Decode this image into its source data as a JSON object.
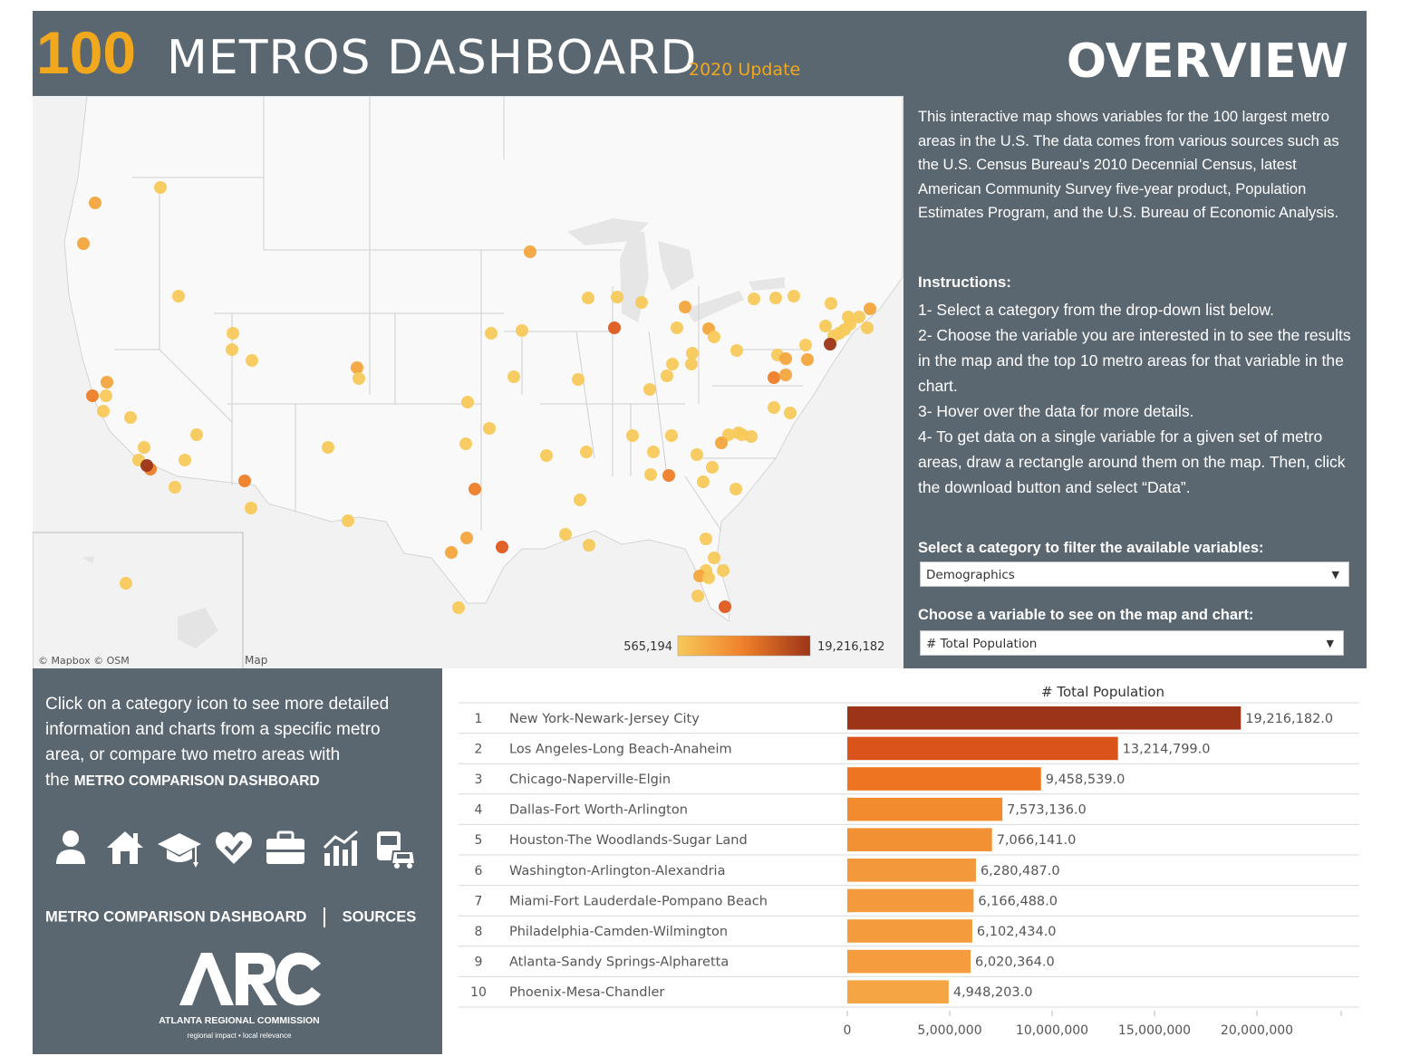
{
  "header": {
    "title_number": "100",
    "title_main": "METROS DASHBOARD",
    "title_update": "2020 Update",
    "overview": "OVERVIEW"
  },
  "intro_text": "This interactive map shows variables for the 100 largest metro areas in the U.S. The data comes from various sources such as the U.S. Census Bureau's 2010 Decennial Census, latest American Community Survey five-year product, Population Estimates Program, and the U.S. Bureau of Economic Analysis.",
  "instructions": {
    "title": "Instructions:",
    "steps": [
      "1- Select a category from the drop-down list below.",
      "2- Choose the variable you are interested in to see the results in the map and the top 10 metro areas for that variable in the chart.",
      "3- Hover over the data for more details.",
      "4- To get data on a single variable for a given set of metro areas, draw a rectangle around them on the map. Then, click the download button and select “Data”."
    ]
  },
  "filters": {
    "category_label": "Select a category to filter the available variables:",
    "category_value": "Demographics",
    "variable_label": "Choose a variable to see on the map and chart:",
    "variable_value": "# Total Population"
  },
  "map": {
    "legend_min": "565,194",
    "legend_max": "19,216,182",
    "attribution": "© Mapbox  © OSM",
    "attribution_cut": "Map",
    "colors": {
      "low": "#f7c95a",
      "mid": "#f08a2c",
      "high": "#9c3518"
    }
  },
  "left_panel": {
    "text_lines": [
      "Click on a category icon to see more detailed",
      "information and charts from a specific metro",
      "area, or compare two metro areas with"
    ],
    "text_the": "the ",
    "text_bold": "METRO COMPARISON DASHBOARD",
    "icons": [
      "person-icon",
      "home-icon",
      "graduation-cap-icon",
      "heart-icon",
      "briefcase-icon",
      "bar-chart-icon",
      "transit-icon"
    ],
    "link_metro": "METRO COMPARISON DASHBOARD",
    "link_sources": "SOURCES",
    "logo_name": "ATLANTA REGIONAL COMMISSION",
    "logo_tagline": "regional impact • local relevance"
  },
  "chart_data": {
    "type": "bar",
    "orientation": "horizontal",
    "title": "# Total Population",
    "ranks": [
      "1",
      "2",
      "3",
      "4",
      "5",
      "6",
      "7",
      "8",
      "9",
      "10"
    ],
    "categories": [
      "New York-Newark-Jersey City",
      "Los Angeles-Long Beach-Anaheim",
      "Chicago-Naperville-Elgin",
      "Dallas-Fort Worth-Arlington",
      "Houston-The Woodlands-Sugar Land",
      "Washington-Arlington-Alexandria",
      "Miami-Fort Lauderdale-Pompano Beach",
      "Philadelphia-Camden-Wilmington",
      "Atlanta-Sandy Springs-Alpharetta",
      "Phoenix-Mesa-Chandler"
    ],
    "values": [
      19216182,
      13214799,
      9458539,
      7573136,
      7066141,
      6280487,
      6166488,
      6102434,
      6020364,
      4948203
    ],
    "value_labels": [
      "19,216,182.0",
      "13,214,799.0",
      "9,458,539.0",
      "7,573,136.0",
      "7,066,141.0",
      "6,280,487.0",
      "6,166,488.0",
      "6,102,434.0",
      "6,020,364.0",
      "4,948,203.0"
    ],
    "colors": [
      "#9c3518",
      "#d9531b",
      "#ef7421",
      "#f28a2e",
      "#f29133",
      "#f4993b",
      "#f49a3c",
      "#f49b3d",
      "#f49c3e",
      "#f5a543"
    ],
    "xlim": [
      0,
      25000000
    ],
    "xticks": [
      0,
      5000000,
      10000000,
      15000000,
      20000000
    ],
    "xtick_labels": [
      "0",
      "5,000,000",
      "10,000,000",
      "15,000,000",
      "20,000,000"
    ]
  }
}
